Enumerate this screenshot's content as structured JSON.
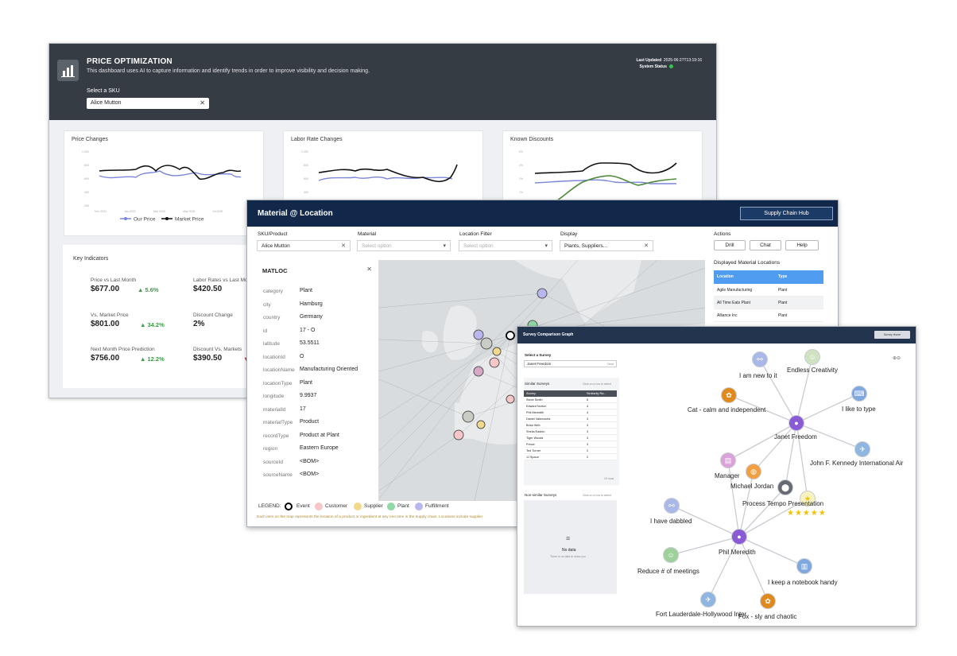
{
  "price_optimization": {
    "title": "PRICE OPTIMIZATION",
    "subtitle": "This dashboard uses AI to capture information and identify trends in order to improve visibility and decision making.",
    "sku_label": "Select a SKU",
    "sku_value": "Alice Mutton",
    "last_updated_label": "Last Updated",
    "last_updated_value": "2025-06-27T13:19:16",
    "system_status_label": "System Status",
    "status_color": "#3fbf4f",
    "charts": {
      "price_changes": {
        "title": "Price Changes",
        "y_ticks": [
          "1,000",
          "800",
          "600",
          "400",
          "200"
        ],
        "x_ticks": [
          "Nov 2024",
          "Jan 2025",
          "Mar 2025",
          "May 2025",
          "Jul 2025"
        ],
        "legend": [
          "Our Price",
          "Market Price"
        ]
      },
      "labor_rate_changes": {
        "title": "Labor Rate Changes",
        "y_ticks": [
          "1,000",
          "800",
          "600",
          "400"
        ]
      },
      "known_discounts": {
        "title": "Known Discounts",
        "y_ticks": [
          "6%",
          "4%",
          "2%",
          "1%"
        ]
      }
    },
    "key_indicators": {
      "title": "Key Indicators",
      "items": [
        {
          "label": "Price vs Last Month",
          "value": "$677.00",
          "delta": "▲ 5.6%"
        },
        {
          "label": "Labor Rates vs Last Mo",
          "value": "$420.50",
          "delta": ""
        },
        {
          "label": "Vs. Market Price",
          "value": "$801.00",
          "delta": "▲ 34.2%"
        },
        {
          "label": "Discount Change",
          "value": "2%",
          "delta": ""
        },
        {
          "label": "Next Month Price Prediction",
          "value": "$756.00",
          "delta": "▲ 12.2%"
        },
        {
          "label": "Discount Vs. Markets",
          "value": "$390.50",
          "delta": "▼"
        }
      ]
    }
  },
  "material_location": {
    "title": "Material @ Location",
    "hub_button": "Supply Chain Hub",
    "filters": {
      "sku_label": "SKU/Product",
      "sku_value": "Alice Mutton",
      "material_label": "Material",
      "material_placeholder": "Select option",
      "location_label": "Location Filter",
      "location_placeholder": "Select option",
      "display_label": "Display",
      "display_value": "Plants, Suppliers..."
    },
    "actions": {
      "label": "Actions",
      "drill": "Drill",
      "chat": "Chat",
      "help": "Help"
    },
    "panel": {
      "title": "MATLOC",
      "rows": [
        {
          "k": "category",
          "v": "Plant"
        },
        {
          "k": "city",
          "v": "Hamburg"
        },
        {
          "k": "country",
          "v": "Germany"
        },
        {
          "k": "id",
          "v": "17 - O"
        },
        {
          "k": "latitude",
          "v": "53.5511"
        },
        {
          "k": "locationId",
          "v": "O"
        },
        {
          "k": "locationName",
          "v": "Manufacturing Oriented"
        },
        {
          "k": "locationType",
          "v": "Plant"
        },
        {
          "k": "longitude",
          "v": "9.9937"
        },
        {
          "k": "materialId",
          "v": "17"
        },
        {
          "k": "materialType",
          "v": "Product"
        },
        {
          "k": "recordType",
          "v": "Product at Plant"
        },
        {
          "k": "region",
          "v": "Eastern Europe"
        },
        {
          "k": "sourceId",
          "v": "<BOM>"
        },
        {
          "k": "sourceName",
          "v": "<BOM>"
        }
      ]
    },
    "table": {
      "title": "Displayed Material Locations",
      "headers": [
        "Location",
        "Type"
      ],
      "rows": [
        [
          "Agile Manufacturing",
          "Plant"
        ],
        [
          "All Time Eats Plant",
          "Plant"
        ],
        [
          "Alliance Inc",
          "Plant"
        ]
      ]
    },
    "legend": {
      "label": "LEGEND:",
      "items": [
        {
          "name": "Event",
          "color": "#ffffff"
        },
        {
          "name": "Customer",
          "color": "#f7c6c6"
        },
        {
          "name": "Supplier",
          "color": "#f3d98a"
        },
        {
          "name": "Plant",
          "color": "#8fd9a6"
        },
        {
          "name": "Fulfillment",
          "color": "#b8b8ee"
        }
      ],
      "note": "Each item on the map represents the location of a product or ingredient at any one time in the supply chain. Locations include supplier"
    }
  },
  "survey_graph": {
    "title": "Survey Comparison Graph",
    "home_button": "Survey Home",
    "select_label": "Select a Survey",
    "select_value": "Janet Freedom",
    "select_clear": "Clear",
    "similar_label": "Similar Surveys",
    "similar_hint": "Click on a row to select",
    "similar_headers": [
      "Survey",
      "Similarity Ra..."
    ],
    "similar_rows": [
      [
        "Steve Smith",
        "5"
      ],
      [
        "Edward Norton",
        "4"
      ],
      [
        "Phil Meredith",
        "4"
      ],
      [
        "Daniel Valenzuela",
        "3"
      ],
      [
        "Brian Web",
        "3"
      ],
      [
        "Sheila Easton",
        "3"
      ],
      [
        "Tiger Woods",
        "3"
      ],
      [
        "Prince",
        "3"
      ],
      [
        "Ted Turner",
        "2"
      ],
      [
        "JJ Spaun",
        "2"
      ]
    ],
    "similar_count": "10 rows",
    "non_similar_label": "Non-similar Surveys",
    "non_similar_hint": "Click on a row to select",
    "no_data": "No data",
    "no_data_sub": "There is no data to show you",
    "nodes": [
      {
        "name": "I am new to it",
        "icon": "link-icon",
        "color": "#a9b8e8"
      },
      {
        "name": "Endless Creativity",
        "icon": "person-icon",
        "color": "#cfe3c2"
      },
      {
        "name": "Cat - calm and independent",
        "icon": "paw-icon",
        "color": "#e08a1e"
      },
      {
        "name": "I like to type",
        "icon": "keyboard-icon",
        "color": "#7fa8e0"
      },
      {
        "name": "Janet Freedom",
        "icon": "person-icon",
        "color": "#8b5bd6"
      },
      {
        "name": "John F. Kennedy International Air",
        "icon": "plane-icon",
        "color": "#8fb6e0"
      },
      {
        "name": "Manager",
        "icon": "clipboard-icon",
        "color": "#d9a3d9"
      },
      {
        "name": "Michael Jordan",
        "icon": "ball-icon",
        "color": "#f0a040"
      },
      {
        "name": "Process Tempo Presentation",
        "icon": "pin-icon",
        "color": "#666b73"
      },
      {
        "name": "I have dabbled",
        "icon": "link-icon",
        "color": "#a9b8e8"
      },
      {
        "name": "Phil Meredith",
        "icon": "person-icon",
        "color": "#8b5bd6"
      },
      {
        "name": "Reduce # of meetings",
        "icon": "person-icon",
        "color": "#9ed19a"
      },
      {
        "name": "I keep a notebook handy",
        "icon": "notebook-icon",
        "color": "#7fa8e0"
      },
      {
        "name": "Fort Lauderdale-Hollywood Inter",
        "icon": "plane-icon",
        "color": "#8fb6e0"
      },
      {
        "name": "Fox - sly and chaotic",
        "icon": "paw-icon",
        "color": "#e08a1e"
      }
    ],
    "stars": "★★★★★"
  }
}
